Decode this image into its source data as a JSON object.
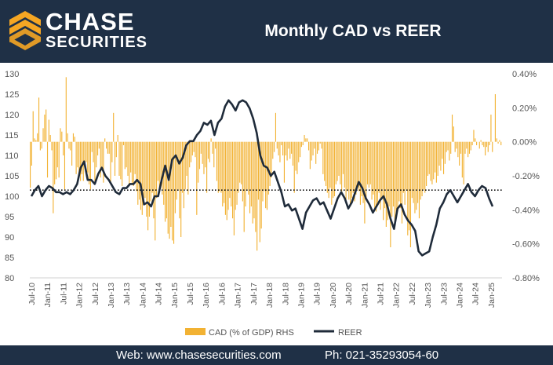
{
  "header": {
    "logo_line1": "CHASE",
    "logo_line2": "SECURITIES",
    "title": "Monthly CAD vs REER"
  },
  "footer": {
    "web": "Web: www.chasesecurities.com",
    "phone": "Ph: 021-35293054-60"
  },
  "colors": {
    "header_bg": "#1f3046",
    "accent": "#f5a623",
    "bar": "#f2b233",
    "line": "#1f2b3a"
  },
  "chart_data": {
    "type": "bar+line",
    "start_month": "Jul-10",
    "x_ticks": [
      "Jul-10",
      "Jan-11",
      "Jul-11",
      "Jan-12",
      "Jul-12",
      "Jan-13",
      "Jul-13",
      "Jan-14",
      "Jul-14",
      "Jan-15",
      "Jul-15",
      "Jan-16",
      "Jul-16",
      "Jan-17",
      "Jul-17",
      "Jan-18",
      "Jul-18",
      "Jan-19",
      "Jul-19",
      "Jan-20",
      "Jul-20",
      "Jan-21",
      "Jul-21",
      "Jan-22",
      "Jul-22",
      "Jan-23",
      "Jul-23",
      "Jan-24",
      "Jul-24",
      "Jan-25"
    ],
    "y_left": {
      "min": 80,
      "max": 130,
      "ticks": [
        "80",
        "85",
        "90",
        "95",
        "100",
        "105",
        "110",
        "115",
        "120",
        "125",
        "130"
      ]
    },
    "y_right": {
      "min": -0.8,
      "max": 0.4,
      "ticks": [
        "-0.80%",
        "-0.60%",
        "-0.40%",
        "-0.20%",
        "0.00%",
        "0.20%",
        "0.40%"
      ]
    },
    "reference_line": {
      "value": 101.5,
      "axis": "left",
      "style": "dotted"
    },
    "legend": {
      "position": "bottom",
      "entries": [
        "CAD (% of GDP) RHS",
        "REER"
      ]
    },
    "series": [
      {
        "name": "CAD (% of GDP) RHS",
        "type": "bar",
        "axis": "right",
        "values": [
          -0.27,
          -0.14,
          0.18,
          0.02,
          0.01,
          0.05,
          0.26,
          -0.05,
          -0.04,
          0.08,
          0.16,
          0.19,
          -0.21,
          0.13,
          0.04,
          -0.05,
          -0.42,
          -0.25,
          -0.22,
          -0.15,
          -0.21,
          0.08,
          0.06,
          -0.08,
          -0.28,
          0.38,
          0.05,
          -0.04,
          -0.05,
          -0.14,
          0.05,
          0.03,
          -0.19,
          -0.15,
          -0.21,
          -0.23,
          -0.19,
          -0.23,
          -0.14,
          -0.12,
          -0.18,
          -0.25,
          -0.28,
          -0.06,
          -0.12,
          -0.24,
          -0.15,
          -0.08,
          -0.04,
          -0.21,
          -0.17,
          -0.24,
          0.02,
          -0.04,
          -0.07,
          -0.07,
          -0.24,
          -0.12,
          0.17,
          -0.2,
          -0.09,
          0.04,
          -0.2,
          -0.22,
          -0.26,
          -0.02,
          -0.16,
          -0.15,
          -0.2,
          -0.26,
          -0.18,
          -0.25,
          -0.26,
          -0.19,
          -0.29,
          -0.37,
          -0.34,
          -0.4,
          -0.43,
          -0.35,
          -0.33,
          -0.44,
          -0.52,
          -0.44,
          -0.35,
          -0.3,
          -0.45,
          -0.58,
          -0.33,
          -0.23,
          -0.29,
          -0.26,
          -0.31,
          -0.37,
          -0.47,
          -0.45,
          -0.54,
          -0.57,
          -0.5,
          -0.58,
          -0.6,
          -0.42,
          -0.34,
          -0.28,
          -0.45,
          -0.56,
          -0.3,
          -0.39,
          -0.28,
          -0.2,
          -0.31,
          -0.15,
          -0.12,
          -0.08,
          -0.06,
          -0.09,
          -0.43,
          -0.24,
          -0.16,
          -0.07,
          -0.13,
          -0.19,
          -0.15,
          -0.3,
          -0.1,
          -0.12,
          0.02,
          -0.07,
          -0.15,
          -0.04,
          -0.23,
          -0.3,
          -0.29,
          -0.3,
          -0.38,
          -0.36,
          -0.43,
          -0.46,
          -0.4,
          -0.33,
          -0.38,
          -0.45,
          -0.55,
          -0.4,
          -0.37,
          -0.3,
          -0.24,
          -0.25,
          -0.35,
          -0.53,
          -0.38,
          -0.28,
          -0.31,
          -0.42,
          -0.38,
          -0.48,
          -0.45,
          -0.53,
          -0.64,
          -0.34,
          -0.59,
          -0.51,
          -0.35,
          -0.29,
          -0.39,
          -0.4,
          -0.31,
          -0.26,
          -0.21,
          -0.1,
          -0.06,
          0.17,
          -0.04,
          -0.08,
          -0.12,
          -0.02,
          -0.08,
          -0.24,
          -0.08,
          -0.11,
          -0.04,
          -0.1,
          -0.07,
          -0.14,
          -0.3,
          -0.17,
          -0.19,
          -0.12,
          -0.09,
          -0.03,
          -0.02,
          0.04,
          0.02,
          0.02,
          -0.05,
          -0.16,
          -0.11,
          -0.08,
          -0.04,
          -0.13,
          -0.07,
          -0.05,
          -0.01,
          -0.04,
          -0.19,
          -0.23,
          -0.26,
          -0.3,
          -0.33,
          -0.27,
          -0.37,
          -0.33,
          -0.32,
          -0.25,
          -0.23,
          -0.2,
          -0.25,
          -0.31,
          -0.19,
          -0.27,
          -0.35,
          -0.29,
          -0.34,
          -0.38,
          -0.33,
          -0.3,
          -0.35,
          -0.31,
          -0.26,
          -0.29,
          -0.37,
          -0.32,
          -0.36,
          -0.48,
          -0.33,
          -0.25,
          -0.27,
          -0.25,
          -0.34,
          -0.31,
          -0.39,
          -0.41,
          -0.36,
          -0.3,
          -0.4,
          -0.33,
          -0.46,
          -0.39,
          -0.5,
          -0.46,
          -0.38,
          -0.62,
          -0.44,
          -0.38,
          -0.48,
          -0.44,
          -0.4,
          -0.35,
          -0.39,
          -0.48,
          -0.3,
          -0.37,
          -0.28,
          -0.55,
          -0.52,
          -0.62,
          -0.33,
          -0.36,
          -0.42,
          -0.4,
          -0.36,
          -0.45,
          -0.34,
          -0.32,
          -0.28,
          -0.3,
          -0.26,
          -0.2,
          -0.19,
          -0.23,
          -0.25,
          -0.22,
          -0.18,
          -0.24,
          -0.2,
          -0.14,
          -0.17,
          -0.1,
          -0.19,
          -0.13,
          -0.06,
          -0.05,
          -0.11,
          -0.07,
          0.16,
          0.09,
          -0.06,
          -0.04,
          -0.09,
          -0.14,
          -0.07,
          -0.21,
          -0.25,
          -0.07,
          -0.04,
          -0.09,
          -0.07,
          -0.05,
          -0.02,
          0.07,
          0.02,
          -0.02,
          0.0,
          -0.04,
          0.01,
          -0.02,
          -0.03,
          -0.08,
          -0.03,
          -0.06,
          -0.02,
          0.16,
          -0.06,
          0.0,
          0.28,
          0.02,
          -0.01,
          0.01,
          -0.02
        ],
        "note": "values approximate; the script maps the longer array onto the time axis"
      },
      {
        "name": "REER",
        "type": "line",
        "axis": "left",
        "values": [
          100.0,
          101.5,
          102.5,
          100.0,
          101.5,
          102.5,
          102.0,
          101.0,
          101.0,
          100.5,
          101.0,
          100.5,
          101.5,
          103.0,
          107.0,
          108.5,
          104.0,
          104.0,
          103.0,
          105.5,
          107.0,
          105.0,
          104.0,
          102.5,
          101.0,
          100.5,
          102.0,
          102.0,
          103.0,
          103.0,
          104.0,
          103.0,
          98.0,
          98.5,
          97.5,
          100.0,
          100.0,
          104.0,
          107.5,
          104.0,
          109.0,
          110.0,
          108.0,
          109.5,
          112.5,
          113.5,
          113.5,
          115.0,
          116.0,
          118.0,
          117.5,
          118.5,
          115.0,
          118.0,
          119.0,
          122.0,
          123.5,
          122.5,
          121.0,
          123.0,
          123.5,
          123.0,
          121.5,
          119.0,
          115.5,
          110.0,
          107.5,
          107.0,
          105.0,
          106.0,
          103.5,
          101.0,
          97.5,
          98.0,
          96.5,
          97.0,
          94.5,
          92.0,
          96.0,
          97.5,
          99.0,
          99.5,
          98.0,
          98.5,
          96.5,
          94.5,
          97.0,
          99.5,
          101.0,
          99.5,
          97.0,
          98.5,
          101.0,
          103.5,
          102.0,
          99.5,
          98.0,
          96.0,
          97.5,
          99.0,
          100.0,
          98.0,
          94.5,
          92.0,
          97.0,
          98.0,
          95.5,
          94.0,
          93.0,
          91.5,
          86.5,
          85.5,
          86.0,
          86.5,
          90.0,
          93.0,
          97.0,
          98.5,
          100.5,
          101.5,
          100.0,
          98.5,
          100.0,
          101.5,
          103.0,
          101.0,
          100.0,
          101.5,
          102.5,
          102.0,
          99.5,
          97.5
        ]
      }
    ]
  }
}
